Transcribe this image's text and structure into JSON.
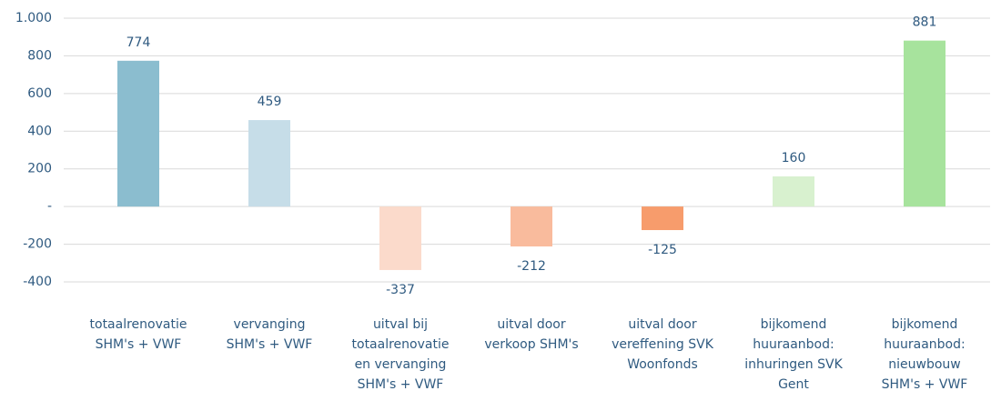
{
  "chart_data": {
    "type": "bar",
    "categories": [
      [
        "totaalrenovatie",
        "SHM's + VWF"
      ],
      [
        "vervanging",
        "SHM's + VWF"
      ],
      [
        "uitval bij",
        "totaalrenovatie",
        "en vervanging",
        "SHM's + VWF"
      ],
      [
        "uitval door",
        "verkoop SHM's"
      ],
      [
        "uitval door",
        "vereffening SVK",
        "Woonfonds"
      ],
      [
        "bijkomend",
        "huuraanbod:",
        "inhuringen SVK",
        "Gent"
      ],
      [
        "bijkomend",
        "huuraanbod:",
        "nieuwbouw",
        "SHM's + VWF"
      ]
    ],
    "values": [
      774,
      459,
      -337,
      -212,
      -125,
      160,
      881
    ],
    "colors": [
      "#8bbdcf",
      "#c6dde8",
      "#fbdacb",
      "#f9bb9d",
      "#f79c6c",
      "#d8f1cf",
      "#a7e39d"
    ],
    "ylim": [
      -400,
      1000
    ],
    "yticks": [
      -400,
      -200,
      {
        "value": 0,
        "label": "-"
      },
      200,
      400,
      600,
      800,
      {
        "value": 1000,
        "label": "1.000"
      }
    ],
    "grid": true
  }
}
